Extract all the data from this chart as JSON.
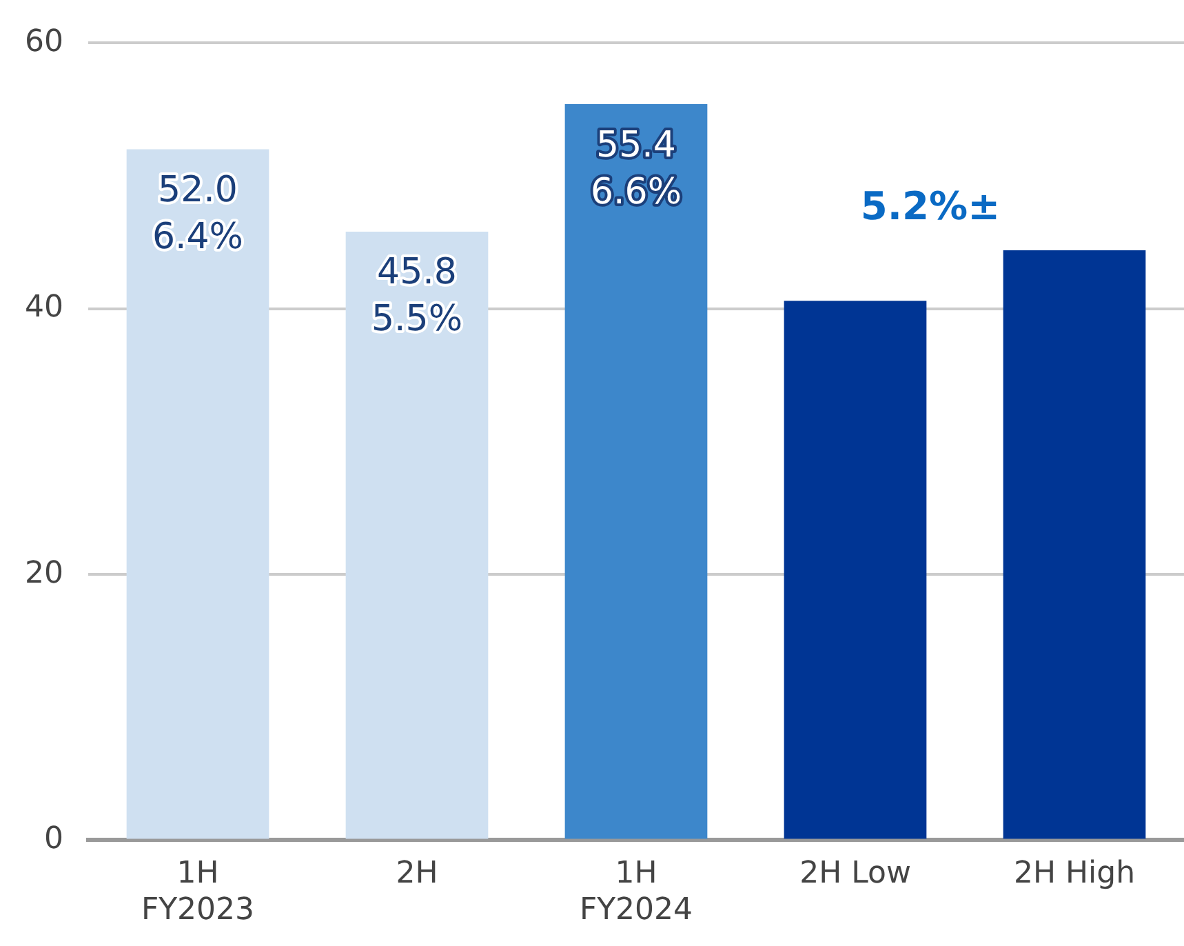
{
  "chart_data": {
    "type": "bar",
    "categories": [
      "1H\nFY2023",
      "2H",
      "1H\nFY2024",
      "2H Low",
      "2H High"
    ],
    "values": [
      52.0,
      45.8,
      55.4,
      40.6,
      44.4
    ],
    "colors": [
      "#cfe0f1",
      "#cfe0f1",
      "#3d87cb",
      "#003594",
      "#003594"
    ],
    "value_labels": [
      "52.0\n6.4%",
      "45.8\n5.5%",
      "55.4\n6.6%",
      null,
      null
    ],
    "annotations": [
      "5.2%±"
    ],
    "ylim": [
      0,
      60
    ],
    "yticks": [
      0,
      20,
      40,
      60
    ],
    "grid": "y",
    "legend": false
  }
}
